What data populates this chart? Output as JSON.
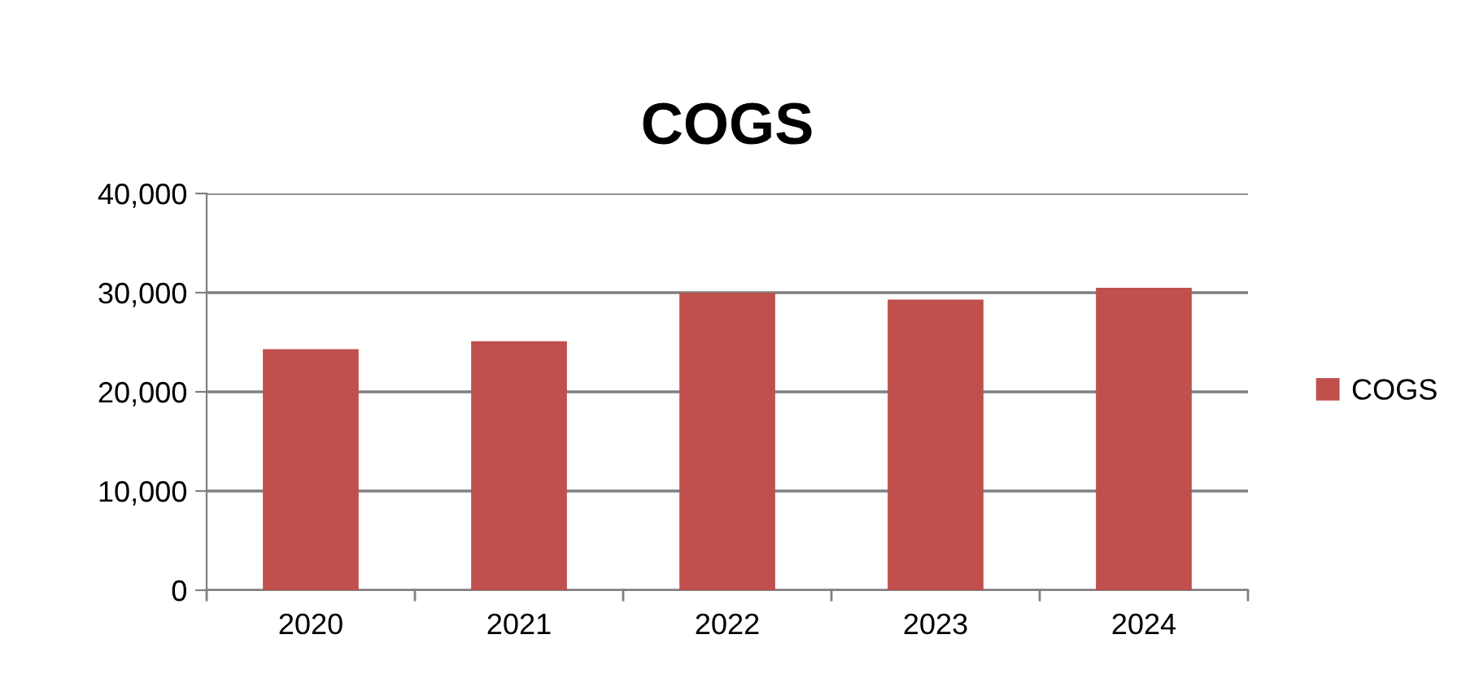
{
  "chart_data": {
    "type": "bar",
    "title": "COGS",
    "categories": [
      "2020",
      "2021",
      "2022",
      "2023",
      "2024"
    ],
    "series": [
      {
        "name": "COGS",
        "color": "#c0504d",
        "values": [
          24300,
          25100,
          30000,
          29300,
          30500
        ]
      }
    ],
    "ylim": [
      0,
      40000
    ],
    "yticks": [
      {
        "value": 0,
        "label": "0"
      },
      {
        "value": 10000,
        "label": "10,000"
      },
      {
        "value": 20000,
        "label": "20,000"
      },
      {
        "value": 30000,
        "label": "30,000"
      },
      {
        "value": 40000,
        "label": "40,000"
      }
    ],
    "grid": "y",
    "legend": "right"
  }
}
